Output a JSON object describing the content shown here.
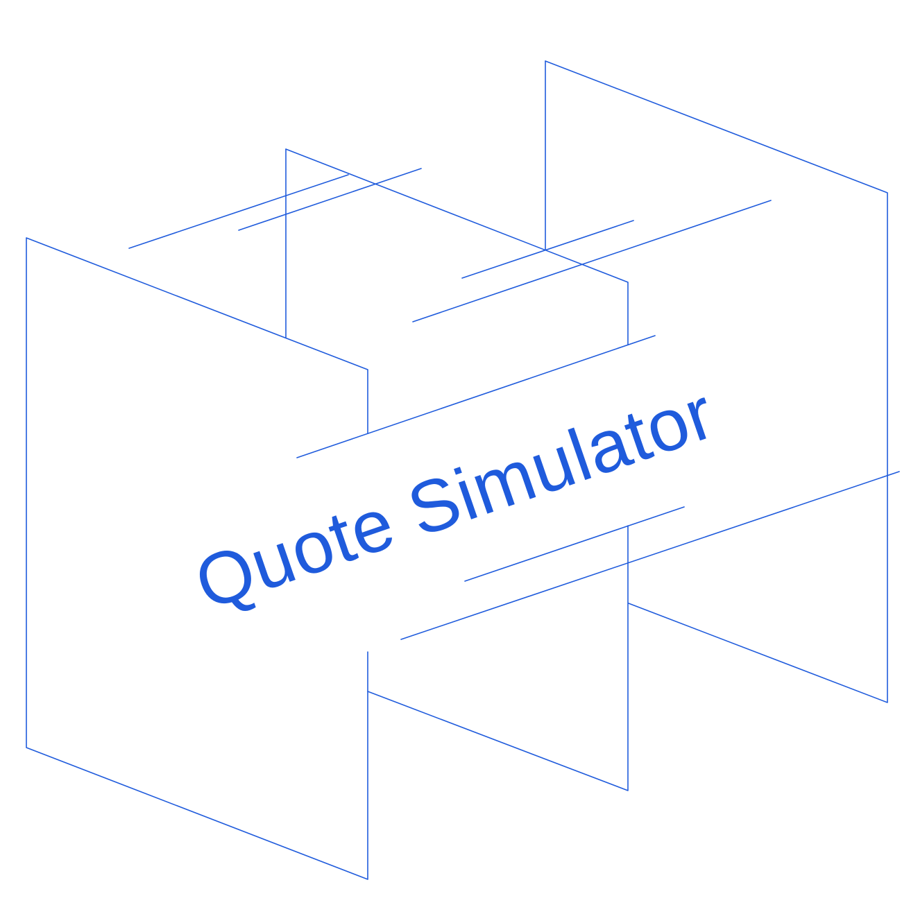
{
  "title": "Quote Simulator",
  "colors": {
    "accent": "#1f5bdc",
    "background": "#ffffff"
  }
}
